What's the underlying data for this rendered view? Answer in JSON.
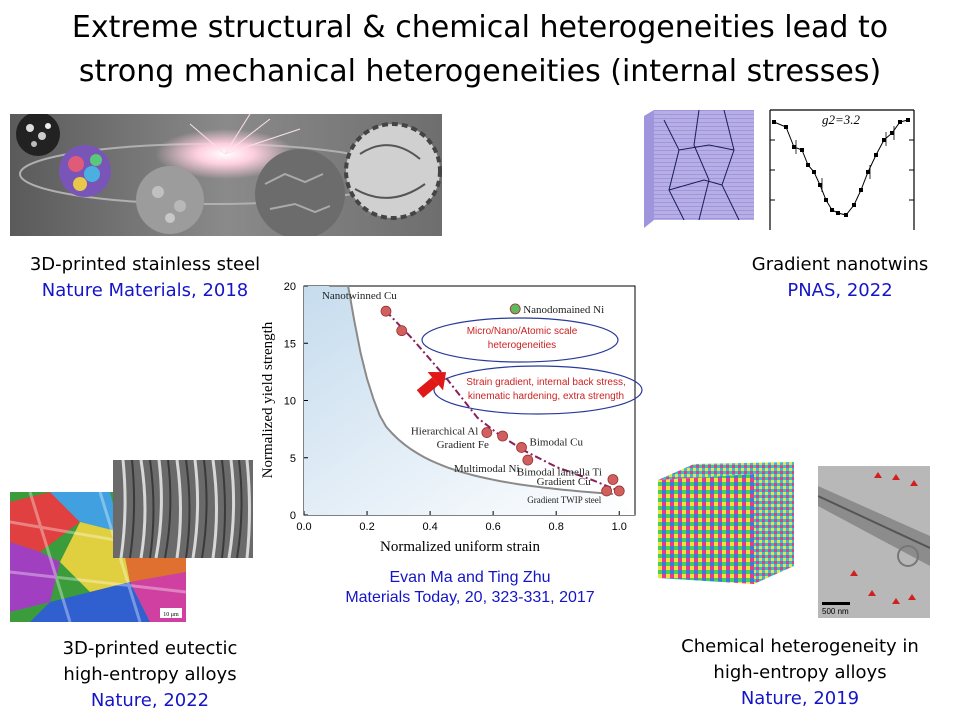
{
  "title": {
    "line1": "Extreme structural & chemical heterogeneities lead to",
    "line2": "strong mechanical heterogeneities (internal stresses)"
  },
  "captions": {
    "top_left": {
      "line1": "3D-printed stainless steel",
      "line2": "Nature Materials, 2018"
    },
    "top_right": {
      "line1": "Gradient nanotwins",
      "line2": "PNAS, 2022"
    },
    "bottom_left": {
      "line1": "3D-printed eutectic",
      "line2": "high-entropy alloys",
      "line3": "Nature, 2022"
    },
    "bottom_right": {
      "line1": "Chemical heterogeneity in",
      "line2": "high-entropy alloys",
      "line3": "Nature, 2019"
    },
    "center": {
      "line1": "Evan Ma and Ting Zhu",
      "line2": "Materials Today, 20, 323-331, 2017"
    }
  },
  "inset_plot": {
    "label": "g2=3.2"
  },
  "tem_scale": "500 nm",
  "ebsd_scale": "10 μm",
  "chart_data": {
    "type": "scatter",
    "xlabel": "Normalized uniform strain",
    "ylabel": "Normalized yield strength",
    "xlim": [
      0,
      1.05
    ],
    "ylim": [
      0,
      20
    ],
    "xticks": [
      "0.0",
      "0.2",
      "0.4",
      "0.6",
      "0.8",
      "1.0"
    ],
    "yticks": [
      "0",
      "5",
      "10",
      "15",
      "20"
    ],
    "points": [
      {
        "label": "Nanotwinned Cu",
        "x": 0.26,
        "y": 17.8,
        "color": "#d06060"
      },
      {
        "label": "",
        "x": 0.31,
        "y": 16.1,
        "color": "#d06060"
      },
      {
        "label": "Nanodomained Ni",
        "x": 0.67,
        "y": 18.0,
        "color": "#5fba5f"
      },
      {
        "label": "Hierarchical Al",
        "x": 0.58,
        "y": 7.2,
        "color": "#d06060"
      },
      {
        "label": "Gradient Fe",
        "x": 0.63,
        "y": 6.9,
        "color": "#d06060"
      },
      {
        "label": "Bimodal Cu",
        "x": 0.69,
        "y": 5.9,
        "color": "#d06060"
      },
      {
        "label": "Multimodal Ni",
        "x": 0.71,
        "y": 4.8,
        "color": "#d06060"
      },
      {
        "label": "Bimodal lamella Ti",
        "x": 0.98,
        "y": 3.1,
        "color": "#d06060"
      },
      {
        "label": "Gradient Cu",
        "x": 0.96,
        "y": 2.1,
        "color": "#d06060"
      },
      {
        "label": "Gradient TWIP steel",
        "x": 1.0,
        "y": 2.1,
        "color": "#d06060"
      }
    ],
    "annotations": {
      "ellipse1": "Micro/Nano/Atomic scale heterogeneities",
      "ellipse2_line1": "Strain gradient, internal back stress,",
      "ellipse2_line2": "kinematic hardening, extra strength"
    },
    "colors": {
      "annotation_text": "#cc2222",
      "ellipse": "#2a3a9a",
      "trend": "#8a1f5a",
      "arrow": "#e01818"
    }
  }
}
